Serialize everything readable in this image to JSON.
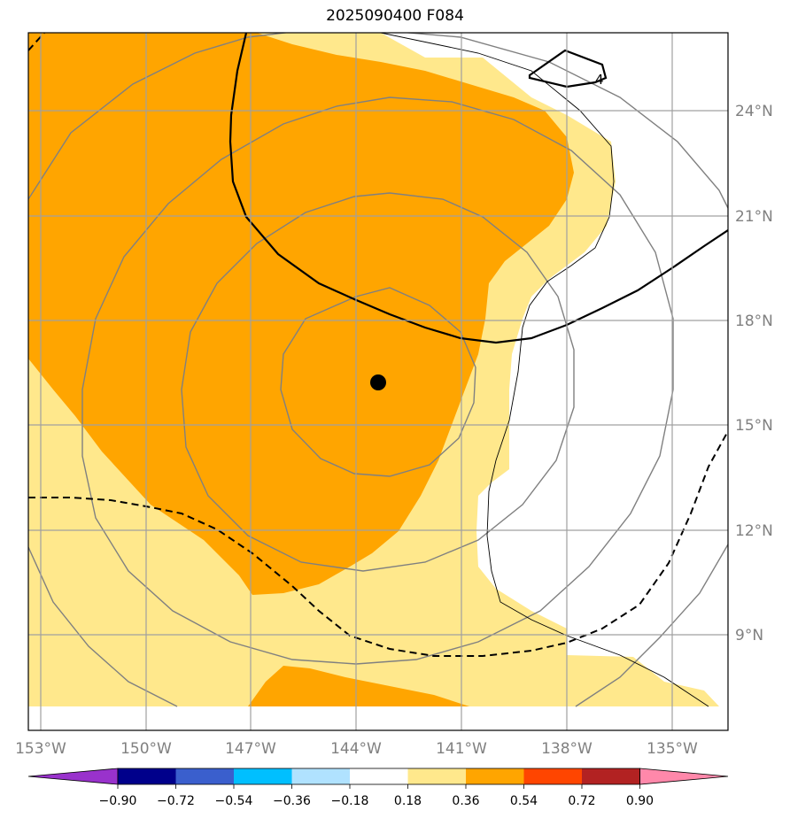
{
  "title": "2025090400 F084",
  "map": {
    "lon_labels": [
      "153°W",
      "150°W",
      "147°W",
      "144°W",
      "141°W",
      "138°W",
      "135°W"
    ],
    "lat_labels": [
      "24°N",
      "21°N",
      "18°N",
      "15°N",
      "12°N",
      "9°N"
    ],
    "contour_label": "4",
    "center_marker": "storm-center",
    "gridline_color": "#a0a0a0",
    "label_color": "#808080"
  },
  "colorbar": {
    "tick_labels": [
      "−0.90",
      "−0.72",
      "−0.54",
      "−0.36",
      "−0.18",
      "0.18",
      "0.36",
      "0.54",
      "0.72",
      "0.90"
    ],
    "colors": [
      "#9932cc",
      "#00008b",
      "#3a5fcd",
      "#00bfff",
      "#b0e2ff",
      "#ffffff",
      "#ffe88c",
      "#ffa500",
      "#ff4500",
      "#b22222",
      "#ff88aa"
    ]
  }
}
